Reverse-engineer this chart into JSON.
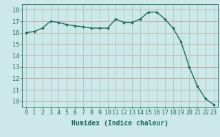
{
  "x": [
    0,
    1,
    2,
    3,
    4,
    5,
    6,
    7,
    8,
    9,
    10,
    11,
    12,
    13,
    14,
    15,
    16,
    17,
    18,
    19,
    20,
    21,
    22,
    23
  ],
  "y": [
    16.0,
    16.1,
    16.4,
    17.0,
    16.9,
    16.7,
    16.6,
    16.5,
    16.4,
    16.4,
    16.4,
    17.2,
    16.9,
    16.9,
    17.2,
    17.8,
    17.8,
    17.2,
    16.4,
    15.2,
    13.0,
    11.3,
    10.2,
    9.7
  ],
  "line_color": "#1a6b5a",
  "marker": "D",
  "marker_size": 2.0,
  "bg_color": "#cce8e8",
  "hgrid_color": "#c8a0a0",
  "vgrid_color": "#a0c8c8",
  "xlabel": "Humidex (Indice chaleur)",
  "xlim": [
    -0.5,
    23.5
  ],
  "ylim": [
    9.5,
    18.5
  ],
  "yticks": [
    10,
    11,
    12,
    13,
    14,
    15,
    16,
    17,
    18
  ],
  "xtick_labels": [
    "0",
    "1",
    "2",
    "3",
    "4",
    "5",
    "6",
    "7",
    "8",
    "9",
    "10",
    "11",
    "12",
    "13",
    "14",
    "15",
    "16",
    "17",
    "18",
    "19",
    "20",
    "21",
    "22",
    "23"
  ],
  "tick_color": "#1a6b5a",
  "label_fontsize": 7,
  "tick_fontsize": 6
}
